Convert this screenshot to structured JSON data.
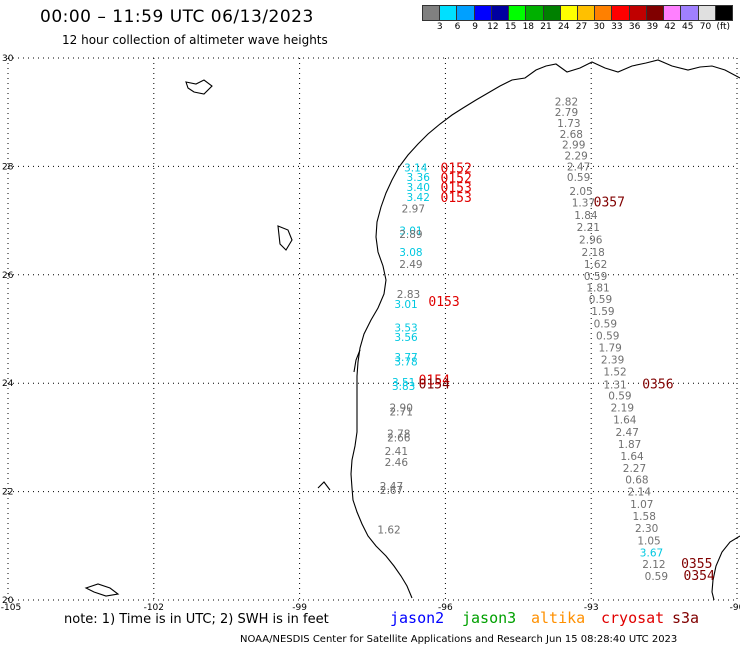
{
  "header": {
    "title": "00:00 – 11:59 UTC 06/13/2023",
    "subtitle": "12 hour collection of altimeter wave heights"
  },
  "colorbar": {
    "colors": [
      "#808080",
      "#00e0ff",
      "#00a0ff",
      "#0000ff",
      "#0000a0",
      "#00ff00",
      "#00b000",
      "#008000",
      "#ffff00",
      "#ffc000",
      "#ff8000",
      "#ff0000",
      "#c00000",
      "#800000",
      "#ff80ff",
      "#a080ff",
      "#e0e0e0",
      "#000000"
    ],
    "labels": [
      "3",
      "6",
      "9",
      "12",
      "15",
      "18",
      "21",
      "24",
      "27",
      "30",
      "33",
      "36",
      "39",
      "42",
      "45",
      "70",
      "(ft)"
    ]
  },
  "axes": {
    "lon_ticks": [
      "-105",
      "-102",
      "-99",
      "-96",
      "-93",
      "-90"
    ],
    "lat_ticks": [
      "30",
      "28",
      "26",
      "24",
      "22",
      "20"
    ]
  },
  "observations": [
    {
      "label": "2.82",
      "lon": -93.75,
      "lat": 29.2,
      "color": "#707070"
    },
    {
      "label": "2.79",
      "lon": -93.75,
      "lat": 29.0,
      "color": "#707070"
    },
    {
      "label": "1.73",
      "lon": -93.7,
      "lat": 28.8,
      "color": "#707070"
    },
    {
      "label": "2.68",
      "lon": -93.65,
      "lat": 28.6,
      "color": "#707070"
    },
    {
      "label": "2.99",
      "lon": -93.6,
      "lat": 28.4,
      "color": "#707070"
    },
    {
      "label": "2.29",
      "lon": -93.55,
      "lat": 28.2,
      "color": "#707070"
    },
    {
      "label": "2.47",
      "lon": -93.5,
      "lat": 28.0,
      "color": "#707070"
    },
    {
      "label": "0.59",
      "lon": -93.5,
      "lat": 27.8,
      "color": "#707070"
    },
    {
      "label": "2.05",
      "lon": -93.45,
      "lat": 27.55,
      "color": "#707070"
    },
    {
      "label": "1.37",
      "lon": -93.4,
      "lat": 27.33,
      "color": "#707070"
    },
    {
      "label": "1.84",
      "lon": -93.35,
      "lat": 27.1,
      "color": "#707070"
    },
    {
      "label": "2.21",
      "lon": -93.3,
      "lat": 26.88,
      "color": "#707070"
    },
    {
      "label": "2.96",
      "lon": -93.25,
      "lat": 26.65,
      "color": "#707070"
    },
    {
      "label": "2.18",
      "lon": -93.2,
      "lat": 26.42,
      "color": "#707070"
    },
    {
      "label": "1.62",
      "lon": -93.15,
      "lat": 26.2,
      "color": "#707070"
    },
    {
      "label": "0.59",
      "lon": -93.15,
      "lat": 25.98,
      "color": "#707070"
    },
    {
      "label": "1.81",
      "lon": -93.1,
      "lat": 25.77,
      "color": "#707070"
    },
    {
      "label": "0.59",
      "lon": -93.05,
      "lat": 25.55,
      "color": "#707070"
    },
    {
      "label": "1.59",
      "lon": -93.0,
      "lat": 25.33,
      "color": "#707070"
    },
    {
      "label": "0.59",
      "lon": -92.95,
      "lat": 25.1,
      "color": "#707070"
    },
    {
      "label": "0.59",
      "lon": -92.9,
      "lat": 24.88,
      "color": "#707070"
    },
    {
      "label": "1.79",
      "lon": -92.85,
      "lat": 24.66,
      "color": "#707070"
    },
    {
      "label": "2.39",
      "lon": -92.8,
      "lat": 24.44,
      "color": "#707070"
    },
    {
      "label": "1.52",
      "lon": -92.75,
      "lat": 24.22,
      "color": "#707070"
    },
    {
      "label": "1.31",
      "lon": -92.75,
      "lat": 23.98,
      "color": "#707070"
    },
    {
      "label": "0.59",
      "lon": -92.65,
      "lat": 23.77,
      "color": "#707070"
    },
    {
      "label": "2.19",
      "lon": -92.6,
      "lat": 23.55,
      "color": "#707070"
    },
    {
      "label": "1.64",
      "lon": -92.55,
      "lat": 23.33,
      "color": "#707070"
    },
    {
      "label": "2.47",
      "lon": -92.5,
      "lat": 23.1,
      "color": "#707070"
    },
    {
      "label": "1.87",
      "lon": -92.45,
      "lat": 22.88,
      "color": "#707070"
    },
    {
      "label": "1.64",
      "lon": -92.4,
      "lat": 22.66,
      "color": "#707070"
    },
    {
      "label": "2.27",
      "lon": -92.35,
      "lat": 22.44,
      "color": "#707070"
    },
    {
      "label": "0.68",
      "lon": -92.3,
      "lat": 22.22,
      "color": "#707070"
    },
    {
      "label": "2.14",
      "lon": -92.25,
      "lat": 22.0,
      "color": "#707070"
    },
    {
      "label": "1.07",
      "lon": -92.2,
      "lat": 21.77,
      "color": "#707070"
    },
    {
      "label": "1.58",
      "lon": -92.15,
      "lat": 21.55,
      "color": "#707070"
    },
    {
      "label": "2.30",
      "lon": -92.1,
      "lat": 21.33,
      "color": "#707070"
    },
    {
      "label": "1.05",
      "lon": -92.05,
      "lat": 21.1,
      "color": "#707070"
    },
    {
      "label": "3.67",
      "lon": -92.0,
      "lat": 20.88,
      "color": "#00c8e0"
    },
    {
      "label": "2.12",
      "lon": -91.95,
      "lat": 20.66,
      "color": "#707070"
    },
    {
      "label": "0.59",
      "lon": -91.9,
      "lat": 20.44,
      "color": "#707070"
    },
    {
      "label": "3.14",
      "lon": -96.85,
      "lat": 27.98,
      "color": "#00c8e0"
    },
    {
      "label": "3.36",
      "lon": -96.8,
      "lat": 27.8,
      "color": "#00c8e0"
    },
    {
      "label": "3.40",
      "lon": -96.8,
      "lat": 27.62,
      "color": "#00c8e0"
    },
    {
      "label": "3.42",
      "lon": -96.8,
      "lat": 27.44,
      "color": "#00c8e0"
    },
    {
      "label": "2.97",
      "lon": -96.9,
      "lat": 27.22,
      "color": "#707070"
    },
    {
      "label": "3.01",
      "lon": -96.95,
      "lat": 26.82,
      "color": "#00c8e0"
    },
    {
      "label": "2.89",
      "lon": -96.95,
      "lat": 26.75,
      "color": "#707070"
    },
    {
      "label": "3.08",
      "lon": -96.95,
      "lat": 26.42,
      "color": "#00c8e0"
    },
    {
      "label": "2.49",
      "lon": -96.95,
      "lat": 26.2,
      "color": "#707070"
    },
    {
      "label": "2.83",
      "lon": -97.0,
      "lat": 25.65,
      "color": "#707070"
    },
    {
      "label": "3.01",
      "lon": -97.05,
      "lat": 25.46,
      "color": "#00c8e0"
    },
    {
      "label": "3.53",
      "lon": -97.05,
      "lat": 25.03,
      "color": "#00c8e0"
    },
    {
      "label": "3.56",
      "lon": -97.05,
      "lat": 24.85,
      "color": "#00c8e0"
    },
    {
      "label": "3.77",
      "lon": -97.05,
      "lat": 24.48,
      "color": "#00c8e0"
    },
    {
      "label": "3.78",
      "lon": -97.05,
      "lat": 24.4,
      "color": "#00c8e0"
    },
    {
      "label": "3.51",
      "lon": -97.1,
      "lat": 24.02,
      "color": "#00c8e0"
    },
    {
      "label": "3.83",
      "lon": -97.1,
      "lat": 23.95,
      "color": "#00c8e0"
    },
    {
      "label": "2.90",
      "lon": -97.15,
      "lat": 23.55,
      "color": "#707070"
    },
    {
      "label": "2.71",
      "lon": -97.15,
      "lat": 23.48,
      "color": "#707070"
    },
    {
      "label": "2.78",
      "lon": -97.2,
      "lat": 23.07,
      "color": "#707070"
    },
    {
      "label": "2.66",
      "lon": -97.2,
      "lat": 23.0,
      "color": "#707070"
    },
    {
      "label": "2.41",
      "lon": -97.25,
      "lat": 22.75,
      "color": "#707070"
    },
    {
      "label": "2.46",
      "lon": -97.25,
      "lat": 22.55,
      "color": "#707070"
    },
    {
      "label": "2.47",
      "lon": -97.35,
      "lat": 22.1,
      "color": "#707070"
    },
    {
      "label": "2.67",
      "lon": -97.35,
      "lat": 22.03,
      "color": "#707070"
    },
    {
      "label": "1.62",
      "lon": -97.4,
      "lat": 21.3,
      "color": "#707070"
    },
    {
      "label": "0152",
      "lon": -96.1,
      "lat": 27.96,
      "color": "#e00000",
      "big": true
    },
    {
      "label": "0152",
      "lon": -96.1,
      "lat": 27.78,
      "color": "#e00000",
      "big": true
    },
    {
      "label": "0153",
      "lon": -96.1,
      "lat": 27.6,
      "color": "#e00000",
      "big": true
    },
    {
      "label": "0153",
      "lon": -96.1,
      "lat": 27.42,
      "color": "#e00000",
      "big": true
    },
    {
      "label": "0357",
      "lon": -92.95,
      "lat": 27.33,
      "color": "#800000",
      "big": true
    },
    {
      "label": "0153",
      "lon": -96.35,
      "lat": 25.5,
      "color": "#e00000",
      "big": true
    },
    {
      "label": "0154",
      "lon": -96.55,
      "lat": 24.05,
      "color": "#e00000",
      "big": true
    },
    {
      "label": "0154",
      "lon": -96.55,
      "lat": 23.98,
      "color": "#800000",
      "big": true
    },
    {
      "label": "0356",
      "lon": -91.95,
      "lat": 23.98,
      "color": "#800000",
      "big": true
    },
    {
      "label": "0355",
      "lon": -91.15,
      "lat": 20.66,
      "color": "#800000",
      "big": true
    },
    {
      "label": "0354",
      "lon": -91.1,
      "lat": 20.44,
      "color": "#800000",
      "big": true
    }
  ],
  "footer": {
    "note": "note: 1) Time is in UTC; 2) SWH is in feet",
    "satellites": [
      {
        "name": "jason2",
        "color": "#0000ff"
      },
      {
        "name": "jason3",
        "color": "#00a000"
      },
      {
        "name": "altika",
        "color": "#ff9000"
      },
      {
        "name": "cryosat",
        "color": "#e00000"
      },
      {
        "name": "s3a",
        "color": "#800000"
      }
    ],
    "credit": "NOAA/NESDIS Center for Satellite Applications and Research    Jun 15 08:28:40 UTC 2023"
  }
}
